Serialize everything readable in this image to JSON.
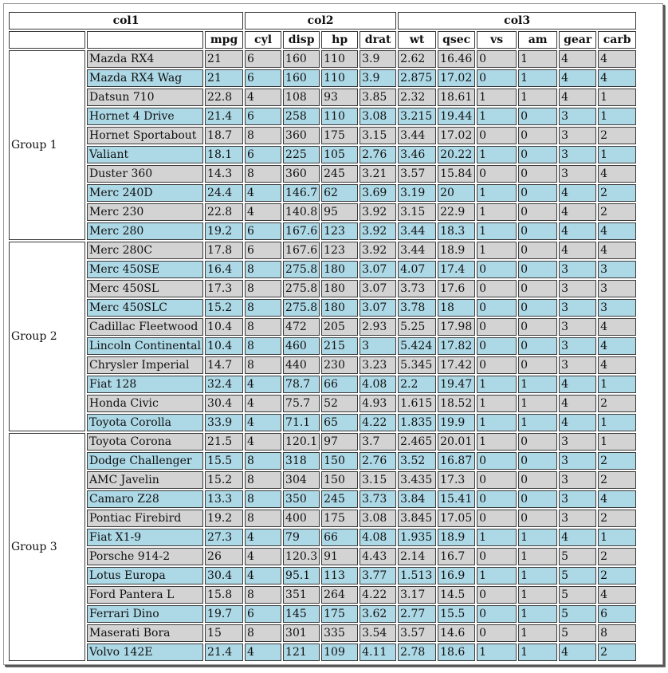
{
  "header": {
    "groups": [
      "col1",
      "col2",
      "col3"
    ],
    "columns": [
      "",
      "mpg",
      "cyl",
      "disp",
      "hp",
      "drat",
      "wt",
      "qsec",
      "vs",
      "am",
      "gear",
      "carb"
    ]
  },
  "groups": [
    {
      "label": "Group 1",
      "rows": [
        [
          "Mazda RX4",
          "21",
          "6",
          "160",
          "110",
          "3.9",
          "2.62",
          "16.46",
          "0",
          "1",
          "4",
          "4"
        ],
        [
          "Mazda RX4 Wag",
          "21",
          "6",
          "160",
          "110",
          "3.9",
          "2.875",
          "17.02",
          "0",
          "1",
          "4",
          "4"
        ],
        [
          "Datsun 710",
          "22.8",
          "4",
          "108",
          "93",
          "3.85",
          "2.32",
          "18.61",
          "1",
          "1",
          "4",
          "1"
        ],
        [
          "Hornet 4 Drive",
          "21.4",
          "6",
          "258",
          "110",
          "3.08",
          "3.215",
          "19.44",
          "1",
          "0",
          "3",
          "1"
        ],
        [
          "Hornet Sportabout",
          "18.7",
          "8",
          "360",
          "175",
          "3.15",
          "3.44",
          "17.02",
          "0",
          "0",
          "3",
          "2"
        ],
        [
          "Valiant",
          "18.1",
          "6",
          "225",
          "105",
          "2.76",
          "3.46",
          "20.22",
          "1",
          "0",
          "3",
          "1"
        ],
        [
          "Duster 360",
          "14.3",
          "8",
          "360",
          "245",
          "3.21",
          "3.57",
          "15.84",
          "0",
          "0",
          "3",
          "4"
        ],
        [
          "Merc 240D",
          "24.4",
          "4",
          "146.7",
          "62",
          "3.69",
          "3.19",
          "20",
          "1",
          "0",
          "4",
          "2"
        ],
        [
          "Merc 230",
          "22.8",
          "4",
          "140.8",
          "95",
          "3.92",
          "3.15",
          "22.9",
          "1",
          "0",
          "4",
          "2"
        ],
        [
          "Merc 280",
          "19.2",
          "6",
          "167.6",
          "123",
          "3.92",
          "3.44",
          "18.3",
          "1",
          "0",
          "4",
          "4"
        ]
      ]
    },
    {
      "label": "Group 2",
      "rows": [
        [
          "Merc 280C",
          "17.8",
          "6",
          "167.6",
          "123",
          "3.92",
          "3.44",
          "18.9",
          "1",
          "0",
          "4",
          "4"
        ],
        [
          "Merc 450SE",
          "16.4",
          "8",
          "275.8",
          "180",
          "3.07",
          "4.07",
          "17.4",
          "0",
          "0",
          "3",
          "3"
        ],
        [
          "Merc 450SL",
          "17.3",
          "8",
          "275.8",
          "180",
          "3.07",
          "3.73",
          "17.6",
          "0",
          "0",
          "3",
          "3"
        ],
        [
          "Merc 450SLC",
          "15.2",
          "8",
          "275.8",
          "180",
          "3.07",
          "3.78",
          "18",
          "0",
          "0",
          "3",
          "3"
        ],
        [
          "Cadillac Fleetwood",
          "10.4",
          "8",
          "472",
          "205",
          "2.93",
          "5.25",
          "17.98",
          "0",
          "0",
          "3",
          "4"
        ],
        [
          "Lincoln Continental",
          "10.4",
          "8",
          "460",
          "215",
          "3",
          "5.424",
          "17.82",
          "0",
          "0",
          "3",
          "4"
        ],
        [
          "Chrysler Imperial",
          "14.7",
          "8",
          "440",
          "230",
          "3.23",
          "5.345",
          "17.42",
          "0",
          "0",
          "3",
          "4"
        ],
        [
          "Fiat 128",
          "32.4",
          "4",
          "78.7",
          "66",
          "4.08",
          "2.2",
          "19.47",
          "1",
          "1",
          "4",
          "1"
        ],
        [
          "Honda Civic",
          "30.4",
          "4",
          "75.7",
          "52",
          "4.93",
          "1.615",
          "18.52",
          "1",
          "1",
          "4",
          "2"
        ],
        [
          "Toyota Corolla",
          "33.9",
          "4",
          "71.1",
          "65",
          "4.22",
          "1.835",
          "19.9",
          "1",
          "1",
          "4",
          "1"
        ]
      ]
    },
    {
      "label": "Group 3",
      "rows": [
        [
          "Toyota Corona",
          "21.5",
          "4",
          "120.1",
          "97",
          "3.7",
          "2.465",
          "20.01",
          "1",
          "0",
          "3",
          "1"
        ],
        [
          "Dodge Challenger",
          "15.5",
          "8",
          "318",
          "150",
          "2.76",
          "3.52",
          "16.87",
          "0",
          "0",
          "3",
          "2"
        ],
        [
          "AMC Javelin",
          "15.2",
          "8",
          "304",
          "150",
          "3.15",
          "3.435",
          "17.3",
          "0",
          "0",
          "3",
          "2"
        ],
        [
          "Camaro Z28",
          "13.3",
          "8",
          "350",
          "245",
          "3.73",
          "3.84",
          "15.41",
          "0",
          "0",
          "3",
          "4"
        ],
        [
          "Pontiac Firebird",
          "19.2",
          "8",
          "400",
          "175",
          "3.08",
          "3.845",
          "17.05",
          "0",
          "0",
          "3",
          "2"
        ],
        [
          "Fiat X1-9",
          "27.3",
          "4",
          "79",
          "66",
          "4.08",
          "1.935",
          "18.9",
          "1",
          "1",
          "4",
          "1"
        ],
        [
          "Porsche 914-2",
          "26",
          "4",
          "120.3",
          "91",
          "4.43",
          "2.14",
          "16.7",
          "0",
          "1",
          "5",
          "2"
        ],
        [
          "Lotus Europa",
          "30.4",
          "4",
          "95.1",
          "113",
          "3.77",
          "1.513",
          "16.9",
          "1",
          "1",
          "5",
          "2"
        ],
        [
          "Ford Pantera L",
          "15.8",
          "8",
          "351",
          "264",
          "4.22",
          "3.17",
          "14.5",
          "0",
          "1",
          "5",
          "4"
        ],
        [
          "Ferrari Dino",
          "19.7",
          "6",
          "145",
          "175",
          "3.62",
          "2.77",
          "15.5",
          "0",
          "1",
          "5",
          "6"
        ],
        [
          "Maserati Bora",
          "15",
          "8",
          "301",
          "335",
          "3.54",
          "3.57",
          "14.6",
          "0",
          "1",
          "5",
          "8"
        ],
        [
          "Volvo 142E",
          "21.4",
          "4",
          "121",
          "109",
          "4.11",
          "2.78",
          "18.6",
          "1",
          "1",
          "4",
          "2"
        ]
      ]
    }
  ],
  "colors": {
    "row_even": "#d3d3d3",
    "row_odd": "#add8e6",
    "border": "#3a3a3a"
  }
}
